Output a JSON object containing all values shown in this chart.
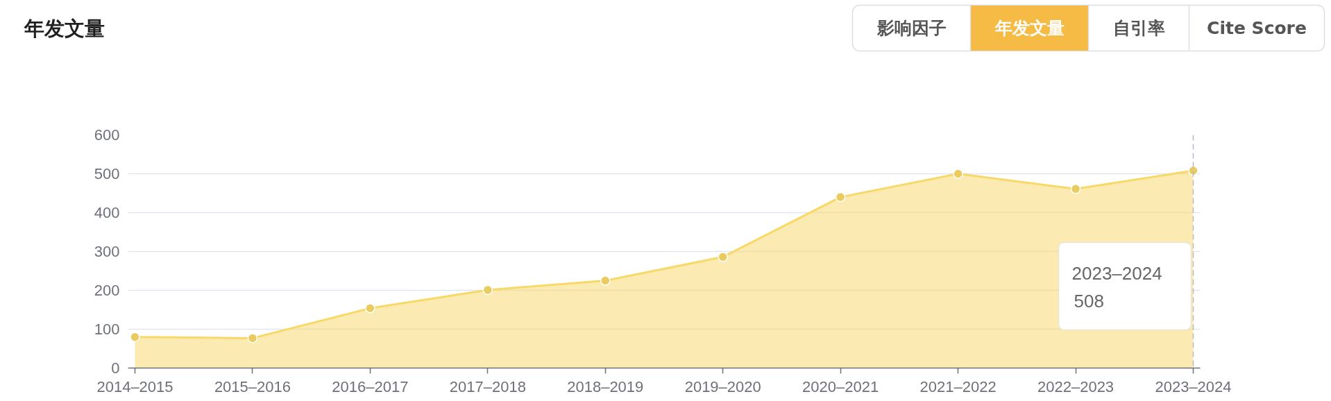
{
  "chart_data": {
    "type": "area",
    "title": "年发文量",
    "categories": [
      "2014–2015",
      "2015–2016",
      "2016–2017",
      "2017–2018",
      "2018–2019",
      "2019–2020",
      "2020–2021",
      "2021–2022",
      "2022–2023",
      "2023–2024"
    ],
    "values": [
      80,
      77,
      154,
      201,
      225,
      286,
      440,
      500,
      461,
      508
    ],
    "color": "#f8d866",
    "ylim": [
      0,
      600
    ],
    "yticks": [
      0,
      100,
      200,
      300,
      400,
      500,
      600
    ],
    "grid": "y",
    "marker": "circle",
    "ref_lines": [
      {
        "axis": "x",
        "value": "2023–2024",
        "color": "#b4bac7",
        "line_style": "dashed",
        "label": "2023–2024\n508"
      }
    ],
    "annotations": [
      "影响因子",
      "年发文量",
      "自引率",
      "Cite Score"
    ]
  }
}
